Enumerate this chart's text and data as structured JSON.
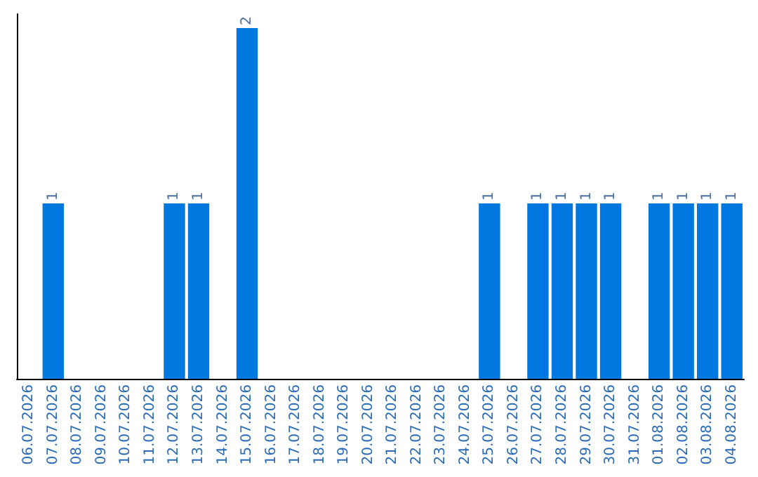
{
  "chart_data": {
    "type": "bar",
    "categories": [
      "06.07.2026",
      "07.07.2026",
      "08.07.2026",
      "09.07.2026",
      "10.07.2026",
      "11.07.2026",
      "12.07.2026",
      "13.07.2026",
      "14.07.2026",
      "15.07.2026",
      "16.07.2026",
      "17.07.2026",
      "18.07.2026",
      "19.07.2026",
      "20.07.2026",
      "21.07.2026",
      "22.07.2026",
      "23.07.2026",
      "24.07.2026",
      "25.07.2026",
      "26.07.2026",
      "27.07.2026",
      "28.07.2026",
      "29.07.2026",
      "30.07.2026",
      "31.07.2026",
      "01.08.2026",
      "02.08.2026",
      "03.08.2026",
      "04.08.2026"
    ],
    "values": [
      0,
      1,
      0,
      0,
      0,
      0,
      1,
      1,
      0,
      2,
      0,
      0,
      0,
      0,
      0,
      0,
      0,
      0,
      0,
      1,
      0,
      1,
      1,
      1,
      1,
      0,
      1,
      1,
      1,
      1
    ],
    "value_labels": [
      null,
      "1",
      null,
      null,
      null,
      null,
      "1",
      "1",
      null,
      "2",
      null,
      null,
      null,
      null,
      null,
      null,
      null,
      null,
      null,
      "1",
      null,
      "1",
      "1",
      "1",
      "1",
      null,
      "1",
      "1",
      "1",
      "1"
    ],
    "color": "#0078e0",
    "tick_labels": "x",
    "grid": false
  }
}
